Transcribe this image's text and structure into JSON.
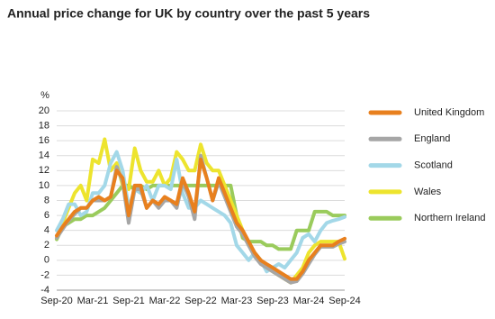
{
  "chart_data": {
    "type": "line",
    "title": "Annual price change for UK by country over the past 5 years",
    "y_label": "%",
    "categories": [
      "Sep-20",
      null,
      null,
      null,
      null,
      null,
      "Mar-21",
      null,
      null,
      null,
      null,
      null,
      "Sep-21",
      null,
      null,
      null,
      null,
      null,
      "Mar-22",
      null,
      null,
      null,
      null,
      null,
      "Sep-22",
      null,
      null,
      null,
      null,
      null,
      "Mar-23",
      null,
      null,
      null,
      null,
      null,
      "Sep-23",
      null,
      null,
      null,
      null,
      null,
      "Mar-24",
      null,
      null,
      null,
      null,
      null,
      "Sep-24"
    ],
    "ylim": [
      -4,
      20
    ],
    "yticks": [
      -4,
      -2,
      0,
      2,
      4,
      6,
      8,
      10,
      12,
      14,
      16,
      18,
      20
    ],
    "grid": true,
    "series": [
      {
        "name": "Northern Ireland",
        "color": "#9acb5c",
        "values": [
          2.8,
          4.5,
          5,
          5.5,
          5.5,
          6,
          6,
          6.5,
          7,
          8,
          9,
          10,
          10,
          9.5,
          10,
          9.5,
          10,
          10,
          10,
          10,
          10,
          10,
          10,
          10,
          10,
          10,
          10,
          10,
          10,
          10,
          6,
          3,
          2.5,
          2.5,
          2.5,
          2,
          2,
          1.5,
          1.5,
          1.5,
          4,
          4,
          4,
          6.5,
          6.5,
          6.5,
          6,
          6,
          6
        ]
      },
      {
        "name": "Wales",
        "color": "#ede42e",
        "values": [
          3,
          5,
          7,
          9,
          10,
          8,
          13.5,
          13,
          16.2,
          12,
          13,
          10,
          9.5,
          15,
          12,
          10.5,
          10.5,
          12,
          10,
          11,
          14.5,
          13.5,
          12,
          12,
          15.5,
          13,
          12,
          12,
          10,
          8,
          6,
          4,
          2,
          1,
          0,
          -1,
          -1.5,
          -2,
          -2.5,
          -3,
          -2,
          -1,
          1,
          2,
          2.5,
          2.5,
          2.5,
          2.5,
          0.2
        ]
      },
      {
        "name": "Scotland",
        "color": "#a3d8e8",
        "values": [
          4,
          5.5,
          7.5,
          7.5,
          6,
          6.5,
          9,
          9,
          10,
          13,
          14.5,
          12,
          7,
          9.5,
          9,
          10,
          8,
          10,
          10,
          9.5,
          13.5,
          9,
          7,
          7,
          8,
          7.5,
          7,
          6.5,
          6,
          5,
          2,
          1,
          0,
          1,
          0,
          -1.5,
          -1,
          -0.5,
          -1,
          0,
          1,
          3,
          3.5,
          2.5,
          4,
          5,
          5.3,
          5.5,
          5.8
        ]
      },
      {
        "name": "England",
        "color": "#a6a6a6",
        "values": [
          3,
          4.2,
          5.3,
          6.2,
          7,
          7,
          8,
          8,
          8,
          8.5,
          12.5,
          10.5,
          5,
          9.5,
          9.5,
          7,
          8,
          7,
          8,
          8,
          7,
          10.5,
          8.5,
          5.5,
          14,
          11,
          8,
          10.5,
          8.5,
          6.5,
          4.5,
          3.5,
          2,
          0.5,
          -0.5,
          -1,
          -1.5,
          -2,
          -2.5,
          -3,
          -2.8,
          -1.8,
          -0.5,
          0.8,
          1.8,
          1.8,
          1.8,
          2.2,
          2.5
        ]
      },
      {
        "name": "United Kingdom",
        "color": "#e8801e",
        "values": [
          3.3,
          4.5,
          5.5,
          6.5,
          7,
          7,
          8,
          8.5,
          8,
          8.5,
          12,
          11,
          6,
          10,
          10,
          7,
          8,
          7.5,
          8.5,
          8,
          7.5,
          11,
          9,
          6.5,
          13.5,
          11,
          8,
          11,
          9,
          7,
          5,
          4,
          2.5,
          1,
          0,
          -0.5,
          -1,
          -1.5,
          -2,
          -2.5,
          -2.5,
          -1.5,
          0,
          1,
          2,
          2,
          2,
          2.5,
          2.9
        ]
      }
    ]
  }
}
